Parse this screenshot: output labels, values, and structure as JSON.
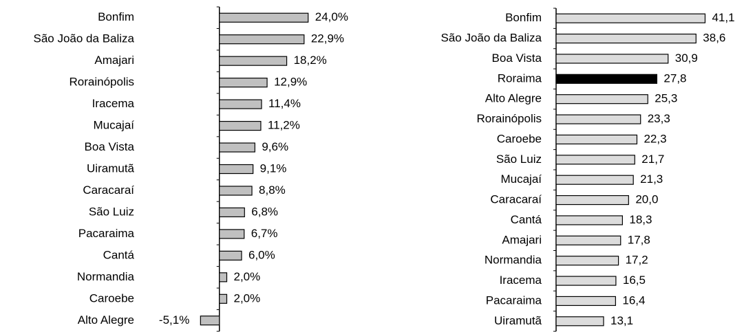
{
  "chart_data": [
    {
      "type": "barh",
      "categories": [
        "Bonfim",
        "São João da Baliza",
        "Amajari",
        "Rorainópolis",
        "Iracema",
        "Mucajaí",
        "Boa Vista",
        "Uiramutã",
        "Caracaraí",
        "São Luiz",
        "Pacaraima",
        "Cantá",
        "Normandia",
        "Caroebe",
        "Alto Alegre"
      ],
      "values": [
        24.0,
        22.9,
        18.2,
        12.9,
        11.4,
        11.2,
        9.6,
        9.1,
        8.8,
        6.8,
        6.7,
        6.0,
        2.0,
        2.0,
        -5.1
      ],
      "value_labels": [
        "24,0%",
        "22,9%",
        "18,2%",
        "12,9%",
        "11,4%",
        "11,2%",
        "9,6%",
        "9,1%",
        "8,8%",
        "6,8%",
        "6,7%",
        "6,0%",
        "2,0%",
        "2,0%",
        "-5,1%"
      ],
      "colors": [
        "#c0c0c0",
        "#c0c0c0",
        "#c0c0c0",
        "#c0c0c0",
        "#c0c0c0",
        "#c0c0c0",
        "#c0c0c0",
        "#c0c0c0",
        "#c0c0c0",
        "#c0c0c0",
        "#c0c0c0",
        "#c0c0c0",
        "#c0c0c0",
        "#c0c0c0",
        "#c0c0c0"
      ],
      "xlim": [
        -10,
        30
      ]
    },
    {
      "type": "barh",
      "categories": [
        "Bonfim",
        "São João da Baliza",
        "Boa Vista",
        "Roraima",
        "Alto Alegre",
        "Rorainópolis",
        "Caroebe",
        "São Luiz",
        "Mucajaí",
        "Caracaraí",
        "Cantá",
        "Amajari",
        "Normandia",
        "Iracema",
        "Pacaraima",
        "Uiramutã"
      ],
      "values": [
        41.1,
        38.6,
        30.9,
        27.8,
        25.3,
        23.3,
        22.3,
        21.7,
        21.3,
        20.0,
        18.3,
        17.8,
        17.2,
        16.5,
        16.4,
        13.1
      ],
      "value_labels": [
        "41,1",
        "38,6",
        "30,9",
        "27,8",
        "25,3",
        "23,3",
        "22,3",
        "21,7",
        "21,3",
        "20,0",
        "18,3",
        "17,8",
        "17,2",
        "16,5",
        "16,4",
        "13,1"
      ],
      "colors": [
        "#dcdcdc",
        "#dcdcdc",
        "#dcdcdc",
        "#000000",
        "#dcdcdc",
        "#dcdcdc",
        "#dcdcdc",
        "#dcdcdc",
        "#dcdcdc",
        "#dcdcdc",
        "#dcdcdc",
        "#dcdcdc",
        "#dcdcdc",
        "#dcdcdc",
        "#dcdcdc",
        "#dcdcdc"
      ],
      "xlim": [
        0,
        45
      ]
    }
  ]
}
